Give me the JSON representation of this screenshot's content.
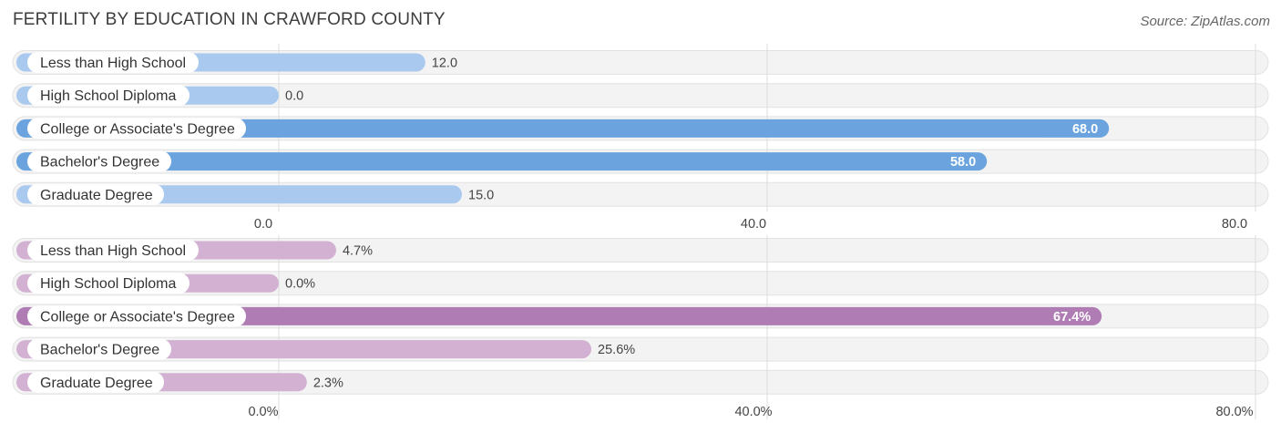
{
  "title": "FERTILITY BY EDUCATION IN CRAWFORD COUNTY",
  "source": "Source: ZipAtlas.com",
  "chart_data": [
    {
      "type": "bar",
      "orientation": "horizontal",
      "categories": [
        "Less than High School",
        "High School Diploma",
        "College or Associate's Degree",
        "Bachelor's Degree",
        "Graduate Degree"
      ],
      "values": [
        12.0,
        0.0,
        68.0,
        58.0,
        15.0
      ],
      "value_labels": [
        "12.0",
        "0.0",
        "68.0",
        "58.0",
        "15.0"
      ],
      "xlim": [
        0,
        80
      ],
      "ticks": [
        0,
        40,
        80
      ],
      "tick_labels": [
        "0.0",
        "40.0",
        "80.0"
      ],
      "grid": true,
      "colors": {
        "light": "#a9c9ee",
        "strong": "#6aa3de"
      }
    },
    {
      "type": "bar",
      "orientation": "horizontal",
      "categories": [
        "Less than High School",
        "High School Diploma",
        "College or Associate's Degree",
        "Bachelor's Degree",
        "Graduate Degree"
      ],
      "values": [
        4.7,
        0.0,
        67.4,
        25.6,
        2.3
      ],
      "value_labels": [
        "4.7%",
        "0.0%",
        "67.4%",
        "25.6%",
        "2.3%"
      ],
      "xlim": [
        0,
        80
      ],
      "ticks": [
        0,
        40,
        80
      ],
      "tick_labels": [
        "0.0%",
        "40.0%",
        "80.0%"
      ],
      "grid": true,
      "colors": {
        "light": "#d2b1d3",
        "strong": "#b07cb4"
      }
    }
  ]
}
